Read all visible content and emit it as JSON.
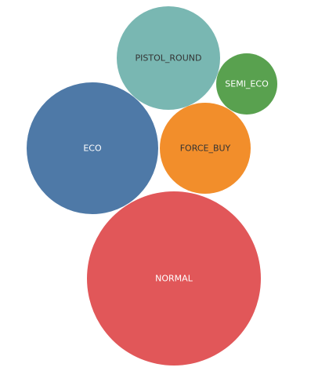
{
  "chart_data": {
    "type": "bubble",
    "bubbles": [
      {
        "label": "PISTOL_ROUND",
        "color": "#79b7b2",
        "text_color": "#333333"
      },
      {
        "label": "SEMI_ECO",
        "color": "#59a14f",
        "text_color": "#ffffff"
      },
      {
        "label": "ECO",
        "color": "#4e79a7",
        "text_color": "#ffffff"
      },
      {
        "label": "FORCE_BUY",
        "color": "#f28e2b",
        "text_color": "#333333"
      },
      {
        "label": "NORMAL",
        "color": "#e15759",
        "text_color": "#ffffff"
      }
    ]
  }
}
